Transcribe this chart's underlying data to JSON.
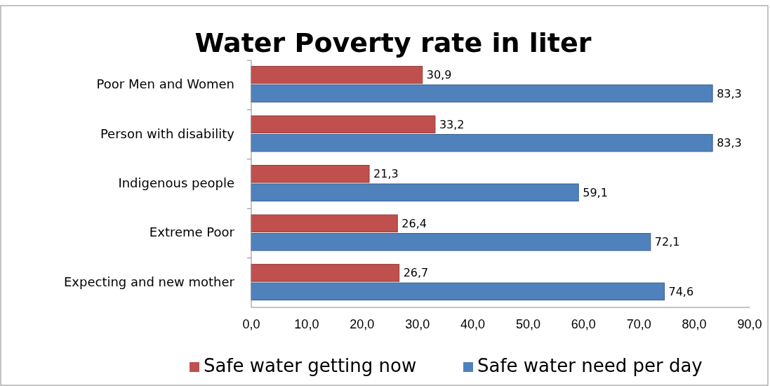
{
  "chart_data": {
    "type": "bar",
    "orientation": "horizontal",
    "title": "Water Poverty rate in liter",
    "categories": [
      "Poor Men and Women",
      "Person with disability",
      "Indigenous people",
      "Extreme Poor",
      "Expecting and new mother"
    ],
    "series": [
      {
        "name": "Safe water  getting now",
        "color": "#c0504d",
        "values": [
          30.9,
          33.2,
          21.3,
          26.4,
          26.7
        ],
        "value_labels": [
          "30,9",
          "33,2",
          "21,3",
          "26,4",
          "26,7"
        ]
      },
      {
        "name": "Safe water  need per day",
        "color": "#4f81bd",
        "values": [
          83.3,
          83.3,
          59.1,
          72.1,
          74.6
        ],
        "value_labels": [
          "83,3",
          "83,3",
          "59,1",
          "72,1",
          "74,6"
        ]
      }
    ],
    "xlim": [
      0,
      90
    ],
    "xticks": [
      {
        "value": 0,
        "label": "0,0"
      },
      {
        "value": 10,
        "label": "10,0"
      },
      {
        "value": 20,
        "label": "20,0"
      },
      {
        "value": 30,
        "label": "30,0"
      },
      {
        "value": 40,
        "label": "40,0"
      },
      {
        "value": 50,
        "label": "50,0"
      },
      {
        "value": 60,
        "label": "60,0"
      },
      {
        "value": 70,
        "label": "70,0"
      },
      {
        "value": 80,
        "label": "80,0"
      },
      {
        "value": 90,
        "label": "90,0"
      }
    ],
    "grid": false,
    "legend": "bottom"
  }
}
